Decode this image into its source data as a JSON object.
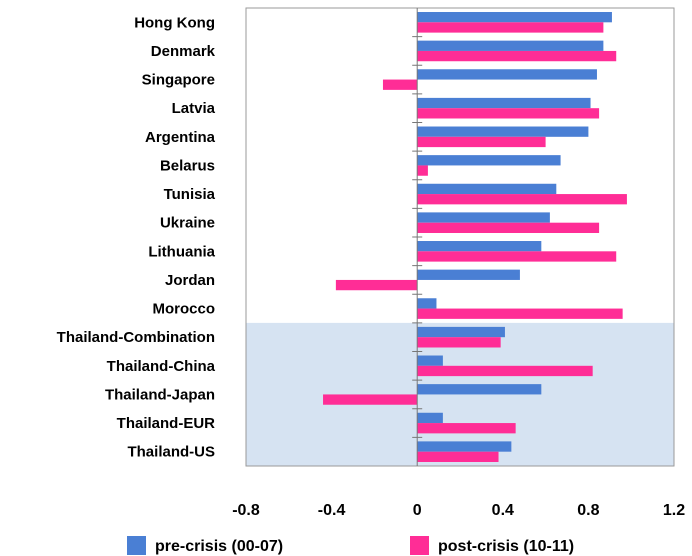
{
  "chart_data": {
    "type": "bar",
    "orientation": "horizontal",
    "categories": [
      "Hong Kong",
      "Denmark",
      "Singapore",
      "Latvia",
      "Argentina",
      "Belarus",
      "Tunisia",
      "Ukraine",
      "Lithuania",
      "Jordan",
      "Morocco",
      "Thailand-Combination",
      "Thailand-China",
      "Thailand-Japan",
      "Thailand-EUR",
      "Thailand-US"
    ],
    "series": [
      {
        "name": "pre-crisis (00-07)",
        "color": "#4a7fd4",
        "values": [
          0.91,
          0.87,
          0.84,
          0.81,
          0.8,
          0.67,
          0.65,
          0.62,
          0.58,
          0.48,
          0.09,
          0.41,
          0.12,
          0.58,
          0.12,
          0.44
        ]
      },
      {
        "name": "post-crisis (10-11)",
        "color": "#ff2d96",
        "values": [
          0.87,
          0.93,
          -0.16,
          0.85,
          0.6,
          0.05,
          0.98,
          0.85,
          0.93,
          -0.38,
          0.96,
          0.39,
          0.82,
          -0.44,
          0.46,
          0.38
        ]
      }
    ],
    "xticks": [
      "-0.8",
      "-0.4",
      "0",
      "0.4",
      "0.8",
      "1.2"
    ],
    "xlim": [
      -0.8,
      1.2
    ],
    "highlight": {
      "from_category": "Thailand-Combination",
      "to_category": "Thailand-US",
      "color": "#d6e3f2"
    },
    "legend_position": "bottom",
    "title": "",
    "xlabel": "",
    "ylabel": ""
  }
}
